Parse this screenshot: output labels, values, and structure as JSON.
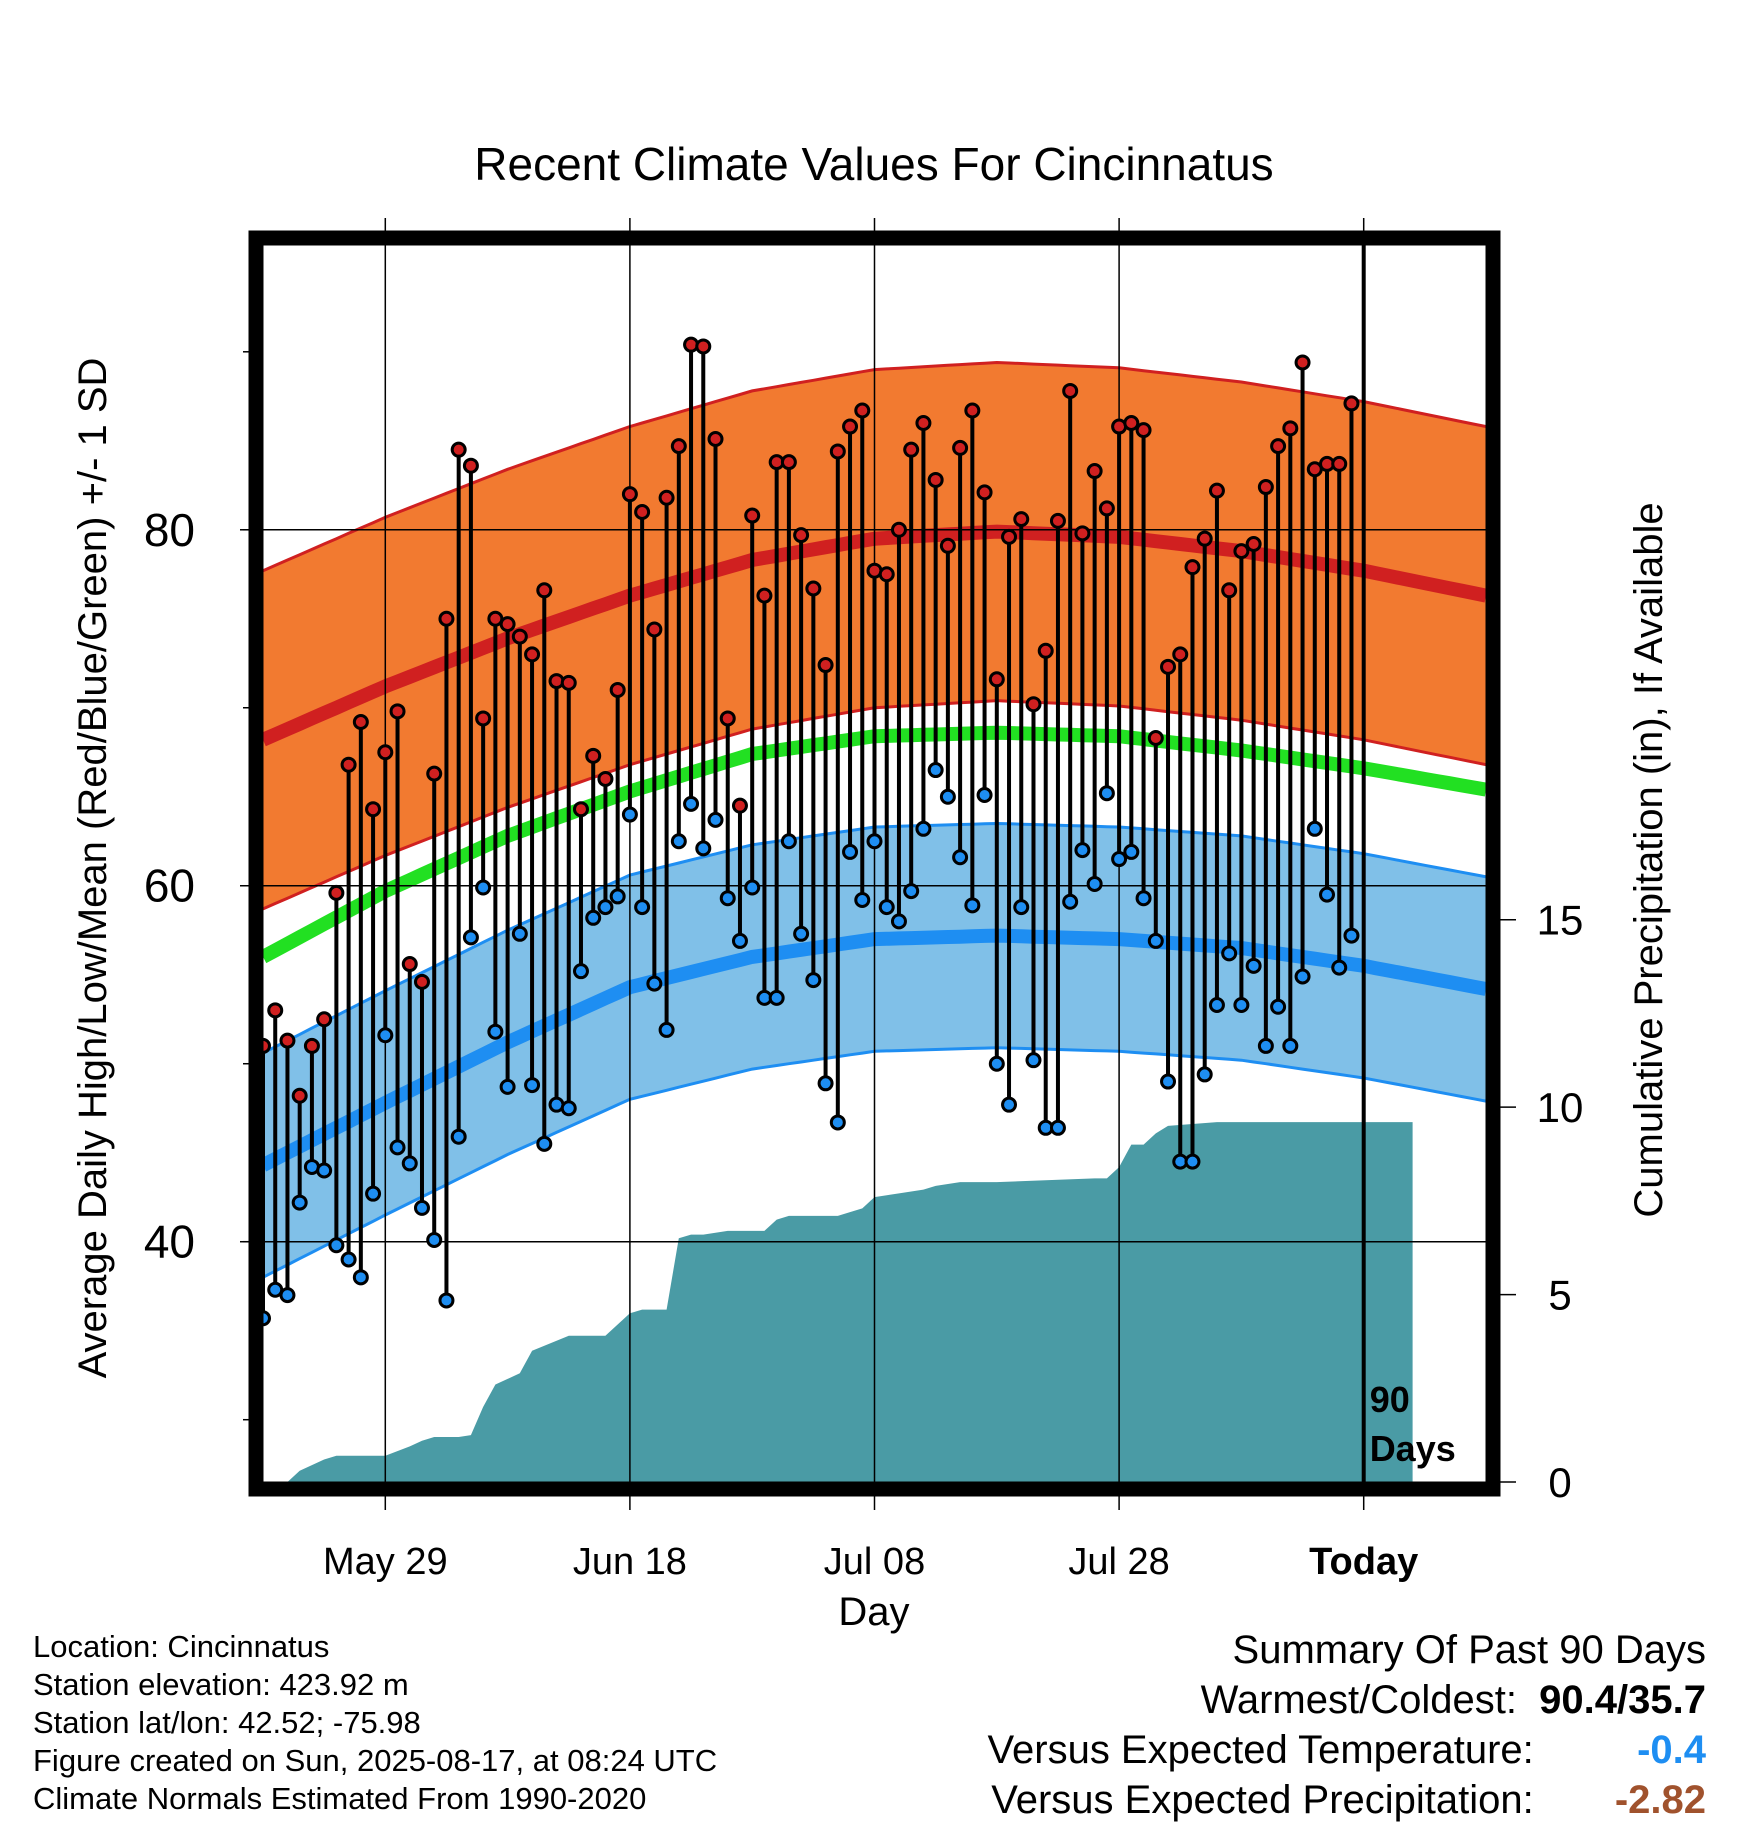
{
  "chart_data": {
    "type": "line",
    "title": "Recent Climate Values For Cincinnatus",
    "xlabel": "Day",
    "ylabel": "Average Daily High/Low/Mean (Red/Blue/Green) +/- 1 SD",
    "y2label": "Cumulative Precipitation (in), If Available",
    "ylim": [
      26.5,
      96
    ],
    "y2lim": [
      0,
      33
    ],
    "y_ticks": [
      40,
      60,
      80
    ],
    "y2_ticks": [
      0,
      5,
      10,
      15
    ],
    "x_tick_labels": [
      "May 29",
      "Jun 18",
      "Jul 08",
      "Jul 28",
      "Today"
    ],
    "x_tick_days": [
      10,
      30,
      50,
      70,
      90
    ],
    "xlim": [
      0,
      100
    ],
    "today_marker_label": "90\nDays",
    "grid": true,
    "normal_high": {
      "day": [
        0,
        10,
        20,
        30,
        40,
        50,
        60,
        70,
        80,
        90,
        100
      ],
      "values": [
        68.2,
        71.2,
        73.9,
        76.3,
        78.3,
        79.5,
        79.9,
        79.6,
        78.8,
        77.7,
        76.3
      ]
    },
    "normal_high_sd": 9.5,
    "normal_mean": {
      "day": [
        0,
        10,
        20,
        30,
        40,
        50,
        60,
        70,
        80,
        90,
        100
      ],
      "values": [
        56.0,
        59.7,
        62.8,
        65.3,
        67.4,
        68.4,
        68.6,
        68.4,
        67.6,
        66.6,
        65.4
      ]
    },
    "normal_low": {
      "day": [
        0,
        10,
        20,
        30,
        40,
        50,
        60,
        70,
        80,
        90,
        100
      ],
      "values": [
        44.3,
        47.8,
        51.2,
        54.3,
        56.0,
        57.0,
        57.2,
        57.0,
        56.5,
        55.5,
        54.2
      ]
    },
    "normal_low_sd": 6.3,
    "observed_day": [
      0,
      1,
      2,
      3,
      4,
      5,
      6,
      7,
      8,
      9,
      10,
      11,
      12,
      13,
      14,
      15,
      16,
      17,
      18,
      19,
      20,
      21,
      22,
      23,
      24,
      25,
      26,
      27,
      28,
      29,
      30,
      31,
      32,
      33,
      34,
      35,
      36,
      37,
      38,
      39,
      40,
      41,
      42,
      43,
      44,
      45,
      46,
      47,
      48,
      49,
      50,
      51,
      52,
      53,
      54,
      55,
      56,
      57,
      58,
      59,
      60,
      61,
      62,
      63,
      64,
      65,
      66,
      67,
      68,
      69,
      70,
      71,
      72,
      73,
      74,
      75,
      76,
      77,
      78,
      79,
      80,
      81,
      82,
      83,
      84,
      85,
      86,
      87,
      88,
      89
    ],
    "observed_high": [
      51,
      53,
      51.3,
      48.2,
      51,
      52.5,
      59.6,
      66.8,
      69.2,
      64.3,
      67.5,
      69.8,
      55.6,
      54.6,
      66.3,
      75,
      84.5,
      83.6,
      69.4,
      75,
      74.7,
      74,
      73,
      76.6,
      71.5,
      71.4,
      64.3,
      67.3,
      66,
      71,
      82,
      81,
      74.4,
      81.8,
      84.7,
      90.4,
      90.3,
      85.1,
      69.4,
      64.5,
      80.8,
      76.3,
      83.8,
      83.8,
      79.7,
      76.7,
      72.4,
      84.4,
      85.8,
      86.7,
      77.7,
      77.5,
      80,
      84.5,
      86,
      82.8,
      79.1,
      84.6,
      86.7,
      82.1,
      71.6,
      79.6,
      80.6,
      70.2,
      73.2,
      80.5,
      87.8,
      79.8,
      83.3,
      81.2,
      85.8,
      86,
      85.6,
      68.3,
      72.3,
      73,
      77.9,
      79.5,
      82.2,
      76.6,
      78.8,
      79.2,
      82.4,
      84.7,
      85.7,
      89.4,
      83.4,
      83.7,
      83.7,
      87.1
    ],
    "observed_low": [
      35.7,
      37.3,
      37,
      42.2,
      44.2,
      44,
      39.8,
      39,
      38,
      42.7,
      51.6,
      45.3,
      44.4,
      41.9,
      40.1,
      36.7,
      45.9,
      57.1,
      59.9,
      51.8,
      48.7,
      57.3,
      48.8,
      45.5,
      47.7,
      47.5,
      55.2,
      58.2,
      58.8,
      59.4,
      64,
      58.8,
      54.5,
      51.9,
      62.5,
      64.6,
      62.1,
      63.7,
      59.3,
      56.9,
      59.9,
      53.7,
      53.7,
      62.5,
      57.3,
      54.7,
      48.9,
      46.7,
      61.9,
      59.2,
      62.5,
      58.8,
      58,
      59.7,
      63.2,
      66.5,
      65,
      61.6,
      58.9,
      65.1,
      50,
      47.7,
      58.8,
      50.2,
      46.4,
      46.4,
      59.1,
      62,
      60.1,
      65.2,
      61.5,
      61.9,
      59.3,
      56.9,
      49,
      44.5,
      44.5,
      49.4,
      53.3,
      56.2,
      53.3,
      55.5,
      51,
      53.2,
      51,
      54.9,
      63.2,
      59.5,
      55.4,
      57.2
    ],
    "precip_cumulative": {
      "day": [
        0,
        2,
        3,
        5,
        6,
        10,
        12,
        13,
        14,
        16,
        17,
        18,
        19,
        21,
        22,
        25,
        28,
        30,
        31,
        33,
        34,
        35,
        36,
        38,
        39,
        41,
        42,
        43,
        44,
        45,
        46,
        47,
        48,
        49,
        50,
        52,
        53,
        54,
        55,
        57,
        60,
        68,
        69,
        70,
        71,
        72,
        73,
        74,
        78,
        84,
        86,
        90,
        94
      ],
      "values": [
        0,
        0,
        0.3,
        0.6,
        0.7,
        0.7,
        0.95,
        1.1,
        1.2,
        1.2,
        1.25,
        2.0,
        2.6,
        2.9,
        3.5,
        3.9,
        3.9,
        4.5,
        4.6,
        4.6,
        6.5,
        6.6,
        6.6,
        6.7,
        6.7,
        6.7,
        7.0,
        7.1,
        7.1,
        7.1,
        7.1,
        7.1,
        7.2,
        7.3,
        7.6,
        7.7,
        7.75,
        7.8,
        7.9,
        8.0,
        8.0,
        8.1,
        8.1,
        8.4,
        9.0,
        9.0,
        9.3,
        9.5,
        9.6,
        9.6,
        9.6,
        9.6,
        9.6
      ]
    }
  },
  "info": {
    "location": "Location: Cincinnatus",
    "elevation": "Station elevation: 423.92 m",
    "latlon": "Station lat/lon: 42.52; -75.98",
    "created": "Figure created on Sun, 2025-08-17, at 08:24 UTC",
    "normals": "Climate Normals Estimated From 1990-2020"
  },
  "summary": {
    "title": "Summary Of Past 90 Days",
    "warmest_coldest_label": "Warmest/Coldest:",
    "warmest_coldest_value": "90.4/35.7",
    "temp_label": "Versus Expected Temperature:",
    "temp_value": "-0.4",
    "temp_color": "#1e8ef2",
    "precip_label": "Versus Expected Precipitation:",
    "precip_value": "-2.82",
    "precip_color": "#a0522d"
  },
  "colors": {
    "high_band": "#f27a30",
    "high_line": "#d02020",
    "mean_line": "#22e022",
    "low_band": "#80c0e8",
    "low_line": "#1e8ef2",
    "precip_fill": "#4a9ba5",
    "high_point": "#d02020",
    "low_point": "#1e8ef2"
  }
}
